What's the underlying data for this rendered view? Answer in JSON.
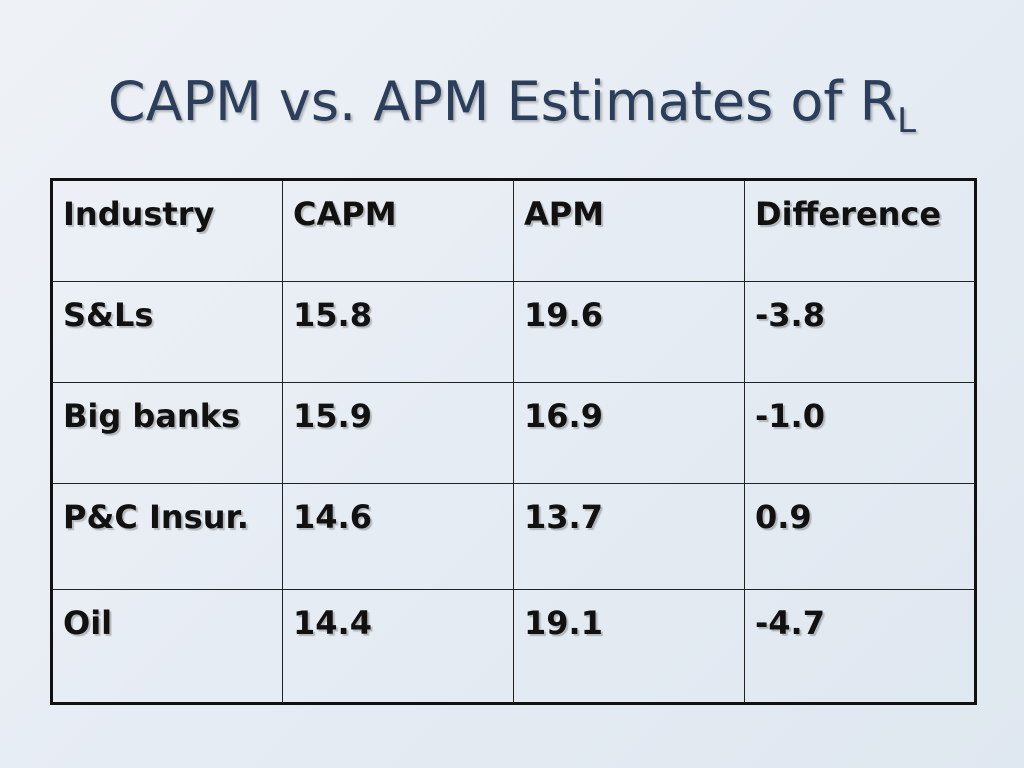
{
  "slide": {
    "title_main": "CAPM vs. APM Estimates of R",
    "title_sub": "L"
  },
  "table": {
    "headers": [
      "Industry",
      "CAPM",
      "APM",
      "Difference"
    ],
    "rows": [
      [
        "S&Ls",
        "15.8",
        "19.6",
        "-3.8"
      ],
      [
        "Big banks",
        "15.9",
        "16.9",
        "-1.0"
      ],
      [
        "P&C Insur.",
        "14.6",
        "13.7",
        " 0.9"
      ],
      [
        "Oil",
        "14.4",
        "19.1",
        "-4.7"
      ]
    ]
  },
  "colors": {
    "title": "#2b3f5c",
    "background": "#e6ecf3",
    "border": "#111111"
  }
}
